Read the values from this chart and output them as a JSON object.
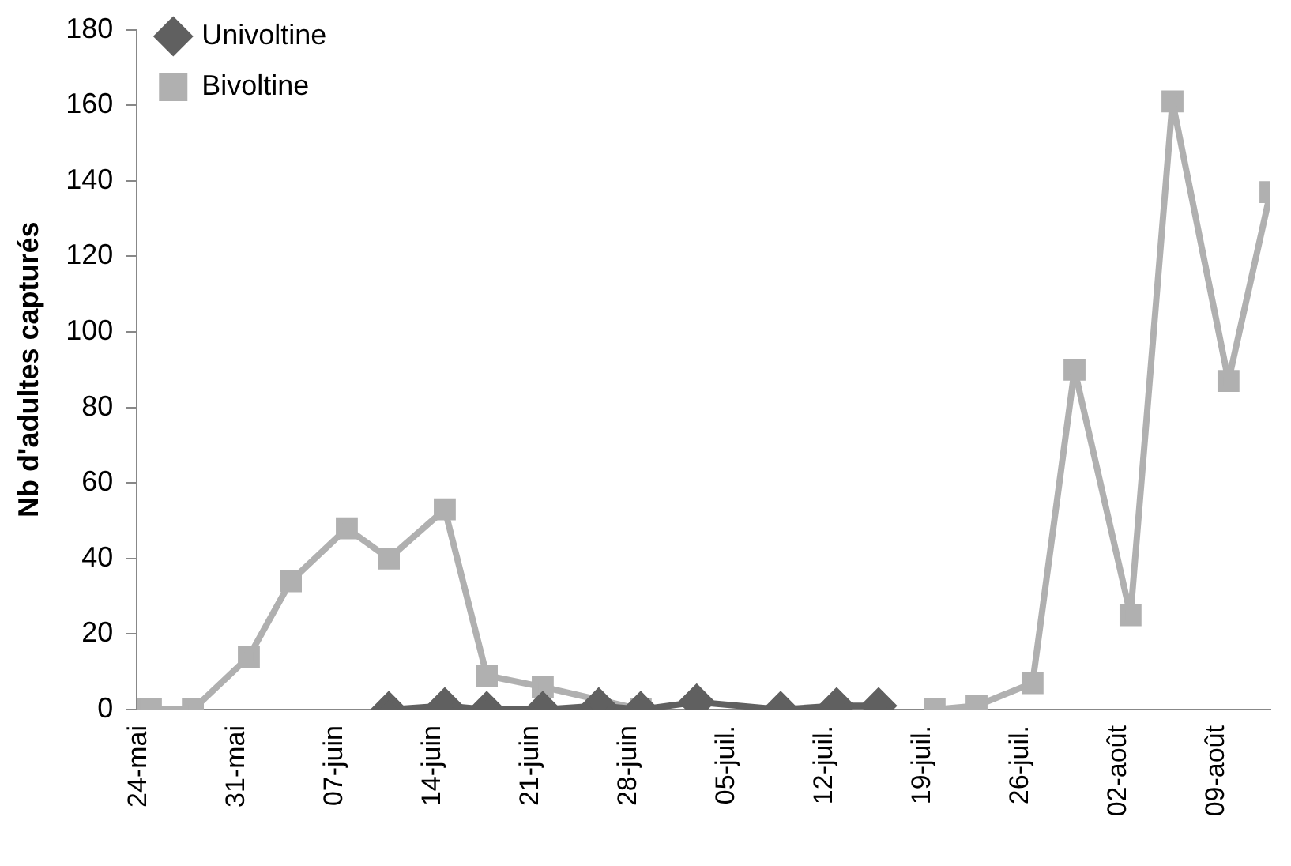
{
  "chart_data": {
    "type": "line",
    "ylabel": "Nb d'adultes capturés",
    "series": [
      {
        "name": "Univoltine",
        "color": "#606060",
        "marker": "diamond",
        "x": [
          "--06-11",
          "--06-15",
          "--06-18",
          "--06-22",
          "--06-26",
          "--06-29",
          "--07-03",
          "--07-09",
          "--07-13",
          "--07-16"
        ],
        "values": [
          0,
          1,
          0,
          0,
          1,
          0,
          2,
          0,
          1,
          1
        ]
      },
      {
        "name": "Bivoltine",
        "color": "#b0b0b0",
        "marker": "square",
        "x": [
          "--05-24",
          "--05-25",
          "--05-28",
          "--06-01",
          "--06-04",
          "--06-08",
          "--06-11",
          "--06-15",
          "--06-18",
          "--06-22",
          "--06-29",
          "--07-10",
          "--07-20",
          "--07-23",
          "--07-27",
          "--07-30",
          "--08-03",
          "--08-06",
          "--08-10",
          "--08-13"
        ],
        "values": [
          0,
          0,
          0,
          14,
          34,
          48,
          40,
          53,
          9,
          6,
          0,
          null,
          0,
          1,
          7,
          90,
          25,
          161,
          87,
          137
        ]
      }
    ],
    "xlim": [
      "--05-24",
      "--08-13"
    ],
    "xticks": [
      {
        "value": "--05-24",
        "label": "24-mai"
      },
      {
        "value": "--05-31",
        "label": "31-mai"
      },
      {
        "value": "--06-07",
        "label": "07-juin"
      },
      {
        "value": "--06-14",
        "label": "14-juin"
      },
      {
        "value": "--06-21",
        "label": "21-juin"
      },
      {
        "value": "--06-28",
        "label": "28-juin"
      },
      {
        "value": "--07-05",
        "label": "05-juil."
      },
      {
        "value": "--07-12",
        "label": "12-juil."
      },
      {
        "value": "--07-19",
        "label": "19-juil."
      },
      {
        "value": "--07-26",
        "label": "26-juil."
      },
      {
        "value": "--08-02",
        "label": "02-août"
      },
      {
        "value": "--08-09",
        "label": "09-août"
      }
    ],
    "ylim": [
      0,
      180
    ],
    "yticks": [
      0,
      20,
      40,
      60,
      80,
      100,
      120,
      140,
      160,
      180
    ],
    "grid": false,
    "legend": "top left",
    "line_style": "solid"
  }
}
